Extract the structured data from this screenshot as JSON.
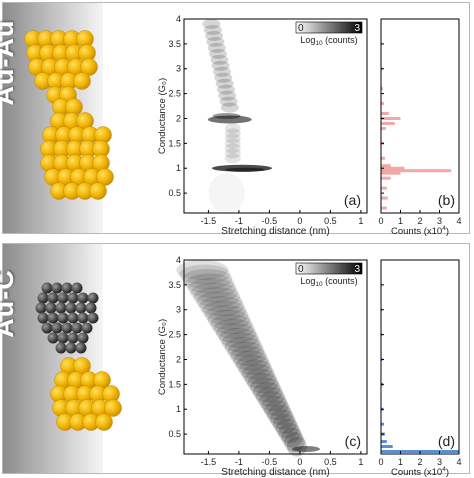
{
  "colors": {
    "gold": "#f0b400",
    "gold_light": "#ffe060",
    "gold_dark": "#c88a00",
    "pink_hist": "#f0a8a8",
    "blue_hist": "#5b8fd0"
  },
  "panels": [
    {
      "label": "Au-Au"
    },
    {
      "label": "Au-C"
    }
  ],
  "chart_data": [
    {
      "type": "heatmap",
      "panel": "(a)",
      "xlabel": "Stretching distance (nm)",
      "ylabel": "Conductance (G₀)",
      "xlim": [
        -1.9,
        1.1
      ],
      "ylim": [
        0.1,
        4.0
      ],
      "xticks": [
        "-1.5",
        "-1",
        "-0.5",
        "0",
        "0.5",
        "1"
      ],
      "yticks": [
        "0.5",
        "1",
        "1.5",
        "2",
        "2.5",
        "3",
        "3.5",
        "4"
      ],
      "colorbar": {
        "min": "0",
        "max": "3",
        "label": "Log10 (counts)"
      }
    },
    {
      "type": "bar",
      "panel": "(b)",
      "xlabel": "Counts (x10⁴)",
      "xlim": [
        0,
        4
      ],
      "xticks": [
        "0",
        "1",
        "2",
        "3",
        "4"
      ],
      "y": [
        0.2,
        0.4,
        0.6,
        0.8,
        0.9,
        0.95,
        1.0,
        1.05,
        1.2,
        1.5,
        1.8,
        1.9,
        2.0,
        2.1,
        2.3,
        2.6,
        3.0,
        3.5
      ],
      "values": [
        0.3,
        0.35,
        0.3,
        0.5,
        1.0,
        3.6,
        1.2,
        0.5,
        0.2,
        0.15,
        0.25,
        0.7,
        1.0,
        0.4,
        0.15,
        0.1,
        0.08,
        0.05
      ]
    },
    {
      "type": "heatmap",
      "panel": "(c)",
      "xlabel": "Stretching distance (nm)",
      "ylabel": "Conductance (G₀)",
      "xlim": [
        -1.9,
        1.1
      ],
      "ylim": [
        0.1,
        4.0
      ],
      "xticks": [
        "-1.5",
        "-1",
        "-0.5",
        "0",
        "0.5",
        "1"
      ],
      "yticks": [
        "0.5",
        "1",
        "1.5",
        "2",
        "2.5",
        "3",
        "3.5",
        "4"
      ],
      "colorbar": {
        "min": "0",
        "max": "3",
        "label": "Log10 (counts)"
      }
    },
    {
      "type": "bar",
      "panel": "(d)",
      "xlabel": "Counts (x10⁴)",
      "xlim": [
        0,
        4
      ],
      "xticks": [
        "0",
        "1",
        "2",
        "3",
        "4"
      ],
      "y": [
        0.15,
        0.25,
        0.35,
        0.5,
        0.7,
        1.0,
        1.5,
        2.0,
        2.5,
        3.0,
        3.5
      ],
      "values": [
        4.0,
        0.6,
        0.3,
        0.2,
        0.15,
        0.12,
        0.1,
        0.08,
        0.06,
        0.05,
        0.04
      ]
    }
  ]
}
